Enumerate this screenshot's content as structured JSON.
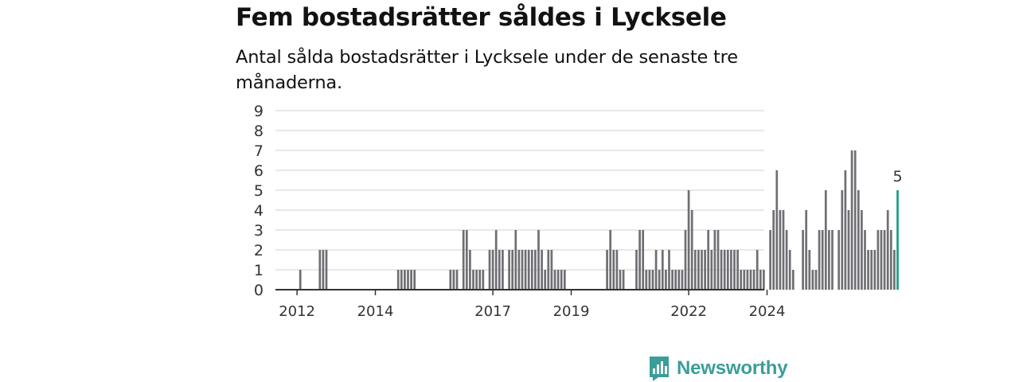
{
  "title": "Fem bostadsrätter såldes i Lycksele",
  "subtitle": "Antal sålda bostadsrätter i Lycksele under de senaste tre månaderna.",
  "brand": {
    "name": "Newsworthy",
    "icon": "newsworthy-logo-icon",
    "color": "#3a9e98"
  },
  "colors": {
    "bar": "#6e6e74",
    "highlight": "#1a9b8e",
    "grid": "#d9d9d9",
    "axis": "#333333"
  },
  "chart_data": {
    "type": "bar",
    "x_start": "2011-07",
    "interval": "month",
    "ylim": [
      0,
      9
    ],
    "y_ticks": [
      0,
      1,
      2,
      3,
      4,
      5,
      6,
      7,
      8,
      9
    ],
    "x_tick_labels": [
      {
        "label": "2012",
        "date": "2012-01"
      },
      {
        "label": "2014",
        "date": "2014-01"
      },
      {
        "label": "2017",
        "date": "2017-01"
      },
      {
        "label": "2019",
        "date": "2019-01"
      },
      {
        "label": "2022",
        "date": "2022-01"
      },
      {
        "label": "2024",
        "date": "2024-01"
      }
    ],
    "values": [
      0,
      0,
      0,
      0,
      0,
      0,
      0,
      1,
      0,
      0,
      0,
      0,
      0,
      2,
      2,
      2,
      0,
      0,
      0,
      0,
      0,
      0,
      0,
      0,
      0,
      0,
      0,
      0,
      0,
      0,
      0,
      0,
      0,
      0,
      0,
      0,
      0,
      1,
      1,
      1,
      1,
      1,
      1,
      0,
      0,
      0,
      0,
      0,
      0,
      0,
      0,
      0,
      0,
      1,
      1,
      1,
      0,
      3,
      3,
      2,
      1,
      1,
      1,
      1,
      0,
      2,
      2,
      3,
      2,
      2,
      0,
      2,
      2,
      3,
      2,
      2,
      2,
      2,
      2,
      2,
      3,
      2,
      1,
      2,
      2,
      1,
      1,
      1,
      1,
      0,
      0,
      0,
      0,
      0,
      0,
      0,
      0,
      0,
      0,
      0,
      0,
      2,
      3,
      2,
      2,
      1,
      1,
      0,
      0,
      0,
      2,
      3,
      3,
      1,
      1,
      1,
      2,
      1,
      2,
      1,
      2,
      1,
      1,
      1,
      1,
      3,
      5,
      4,
      2,
      2,
      2,
      2,
      3,
      2,
      3,
      3,
      2,
      2,
      2,
      2,
      2,
      2,
      1,
      1,
      1,
      1,
      1,
      2,
      1,
      1,
      0,
      3,
      4,
      6,
      4,
      4,
      3,
      2,
      1,
      0,
      0,
      3,
      4,
      2,
      1,
      1,
      3,
      3,
      5,
      3,
      3,
      0,
      3,
      5,
      6,
      4,
      7,
      7,
      5,
      4,
      3,
      2,
      2,
      2,
      3,
      3,
      3,
      4,
      3,
      2,
      5
    ],
    "highlight_last": true,
    "last_value_label": "5"
  }
}
